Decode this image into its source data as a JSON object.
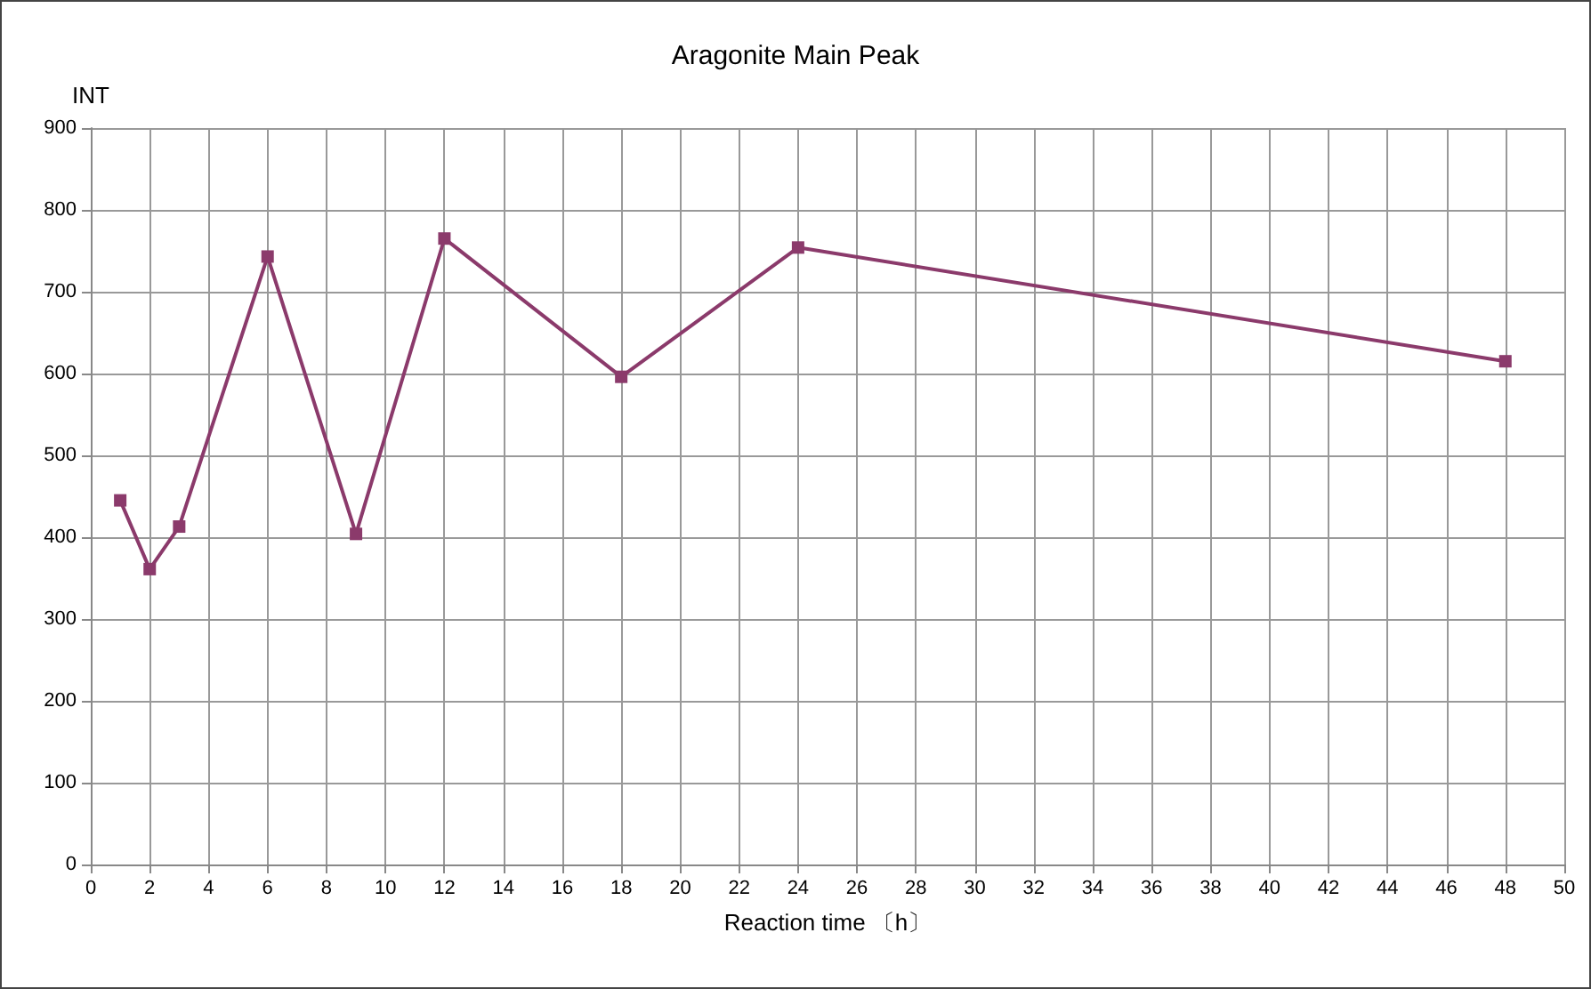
{
  "chart_data": {
    "type": "line",
    "title": "Aragonite Main Peak",
    "xlabel": "Reaction time 〔h〕",
    "ylabel": "INT",
    "x": [
      1,
      2,
      3,
      6,
      9,
      12,
      18,
      24,
      48
    ],
    "series": [
      {
        "color": "#8b3a6b",
        "values": [
          445,
          361,
          413,
          743,
          404,
          765,
          596,
          754,
          615
        ]
      }
    ],
    "xlim": [
      0,
      50
    ],
    "xticks": [
      0,
      2,
      4,
      6,
      8,
      10,
      12,
      14,
      16,
      18,
      20,
      22,
      24,
      26,
      28,
      30,
      32,
      34,
      36,
      38,
      40,
      42,
      44,
      46,
      48,
      50
    ],
    "ylim": [
      0,
      900
    ],
    "yticks": [
      0,
      100,
      200,
      300,
      400,
      500,
      600,
      700,
      800,
      900
    ],
    "grid": true,
    "marker": "square",
    "line_style": "solid"
  }
}
